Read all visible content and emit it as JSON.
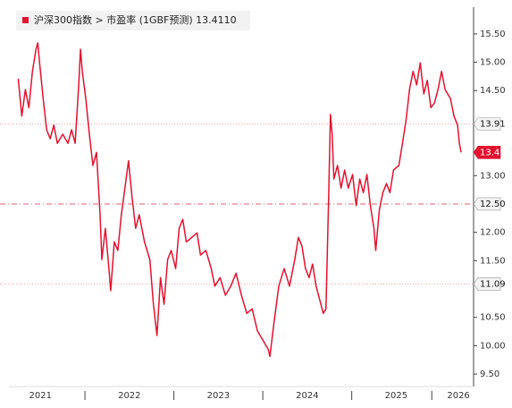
{
  "chart_data": {
    "type": "line",
    "series": [
      {
        "name": "沪深300指数 > 市盈率 (1GBF预测) 13.4110",
        "color": "#e3122f",
        "x": [
          2021.25,
          2021.29,
          2021.33,
          2021.37,
          2021.41,
          2021.45,
          2021.47,
          2021.49,
          2021.53,
          2021.57,
          2021.61,
          2021.65,
          2021.69,
          2021.75,
          2021.81,
          2021.85,
          2021.89,
          2021.93,
          2021.95,
          2021.97,
          2022.01,
          2022.05,
          2022.09,
          2022.13,
          2022.17,
          2022.19,
          2022.23,
          2022.27,
          2022.29,
          2022.33,
          2022.37,
          2022.41,
          2022.45,
          2022.49,
          2022.53,
          2022.57,
          2022.61,
          2022.67,
          2022.73,
          2022.77,
          2022.81,
          2022.85,
          2022.89,
          2022.93,
          2022.97,
          2023.02,
          2023.06,
          2023.1,
          2023.14,
          2023.2,
          2023.26,
          2023.3,
          2023.36,
          2023.42,
          2023.46,
          2023.52,
          2023.58,
          2023.64,
          2023.7,
          2023.76,
          2023.82,
          2023.88,
          2023.94,
          2024.0,
          2024.06,
          2024.08,
          2024.12,
          2024.18,
          2024.24,
          2024.3,
          2024.36,
          2024.4,
          2024.44,
          2024.48,
          2024.52,
          2024.56,
          2024.6,
          2024.64,
          2024.68,
          2024.71,
          2024.74,
          2024.76,
          2024.78,
          2024.8,
          2024.84,
          2024.88,
          2024.92,
          2024.96,
          2025.01,
          2025.05,
          2025.09,
          2025.13,
          2025.17,
          2025.21,
          2025.25,
          2025.27,
          2025.31,
          2025.35,
          2025.39,
          2025.43,
          2025.47,
          2025.53,
          2025.57,
          2025.61,
          2025.65,
          2025.69,
          2025.73,
          2025.77,
          2025.81,
          2025.85,
          2025.89,
          2025.93,
          2025.97,
          2026.01,
          2026.05,
          2026.11,
          2026.15,
          2026.19,
          2026.21,
          2026.23
        ],
        "values": [
          14.71,
          14.05,
          14.52,
          14.2,
          14.84,
          15.23,
          15.34,
          14.99,
          14.36,
          13.81,
          13.65,
          13.89,
          13.57,
          13.73,
          13.57,
          13.81,
          13.57,
          14.6,
          15.23,
          14.84,
          14.36,
          13.73,
          13.18,
          13.41,
          12.31,
          11.52,
          12.07,
          11.36,
          10.97,
          11.83,
          11.68,
          12.31,
          12.78,
          13.26,
          12.62,
          12.07,
          12.31,
          11.83,
          11.52,
          10.73,
          10.18,
          11.2,
          10.73,
          11.52,
          11.68,
          11.36,
          12.07,
          12.23,
          11.83,
          11.91,
          11.99,
          11.6,
          11.68,
          11.36,
          11.05,
          11.2,
          10.89,
          11.05,
          11.28,
          10.89,
          10.57,
          10.65,
          10.26,
          10.1,
          9.94,
          9.81,
          10.33,
          11.05,
          11.36,
          11.05,
          11.52,
          11.91,
          11.76,
          11.36,
          11.2,
          11.44,
          11.05,
          10.81,
          10.57,
          10.65,
          12.62,
          14.08,
          13.73,
          12.94,
          13.18,
          12.78,
          13.1,
          12.78,
          13.02,
          12.47,
          12.94,
          12.7,
          13.02,
          12.47,
          12.07,
          11.68,
          12.39,
          12.7,
          12.86,
          12.7,
          13.1,
          13.18,
          13.57,
          13.97,
          14.52,
          14.84,
          14.6,
          14.99,
          14.44,
          14.68,
          14.2,
          14.28,
          14.52,
          14.84,
          14.52,
          14.36,
          14.05,
          13.89,
          13.57,
          13.41
        ]
      }
    ],
    "xlim": [
      2021.226,
      2026.37
    ],
    "xticks": [
      {
        "value": 2021.5,
        "label": "2021"
      },
      {
        "value": 2022.5,
        "label": "2022"
      },
      {
        "value": 2023.5,
        "label": "2023"
      },
      {
        "value": 2024.5,
        "label": "2024"
      },
      {
        "value": 2025.5,
        "label": "2025"
      },
      {
        "value": 2026.2,
        "label": "2026"
      }
    ],
    "ylim": [
      9.28,
      15.94
    ],
    "yticks": [
      {
        "value": 15.5,
        "label": "15.50"
      },
      {
        "value": 15,
        "label": "15.00"
      },
      {
        "value": 14.5,
        "label": "14.50"
      },
      {
        "value": 13,
        "label": "13.00"
      },
      {
        "value": 12,
        "label": "12.00"
      },
      {
        "value": 11.5,
        "label": "11.50"
      },
      {
        "value": 10.5,
        "label": "10.50"
      },
      {
        "value": 10,
        "label": "10.00"
      },
      {
        "value": 9.5,
        "label": "9.50"
      }
    ],
    "reference_lines": [
      {
        "value": 13.91,
        "label": "13.91",
        "style": "dotted"
      },
      {
        "value": 13.41,
        "label": "13.41",
        "style": "last"
      },
      {
        "value": 12.5,
        "label": "12.50",
        "style": "dashdot"
      },
      {
        "value": 11.09,
        "label": "11.09",
        "style": "dotted"
      }
    ]
  }
}
